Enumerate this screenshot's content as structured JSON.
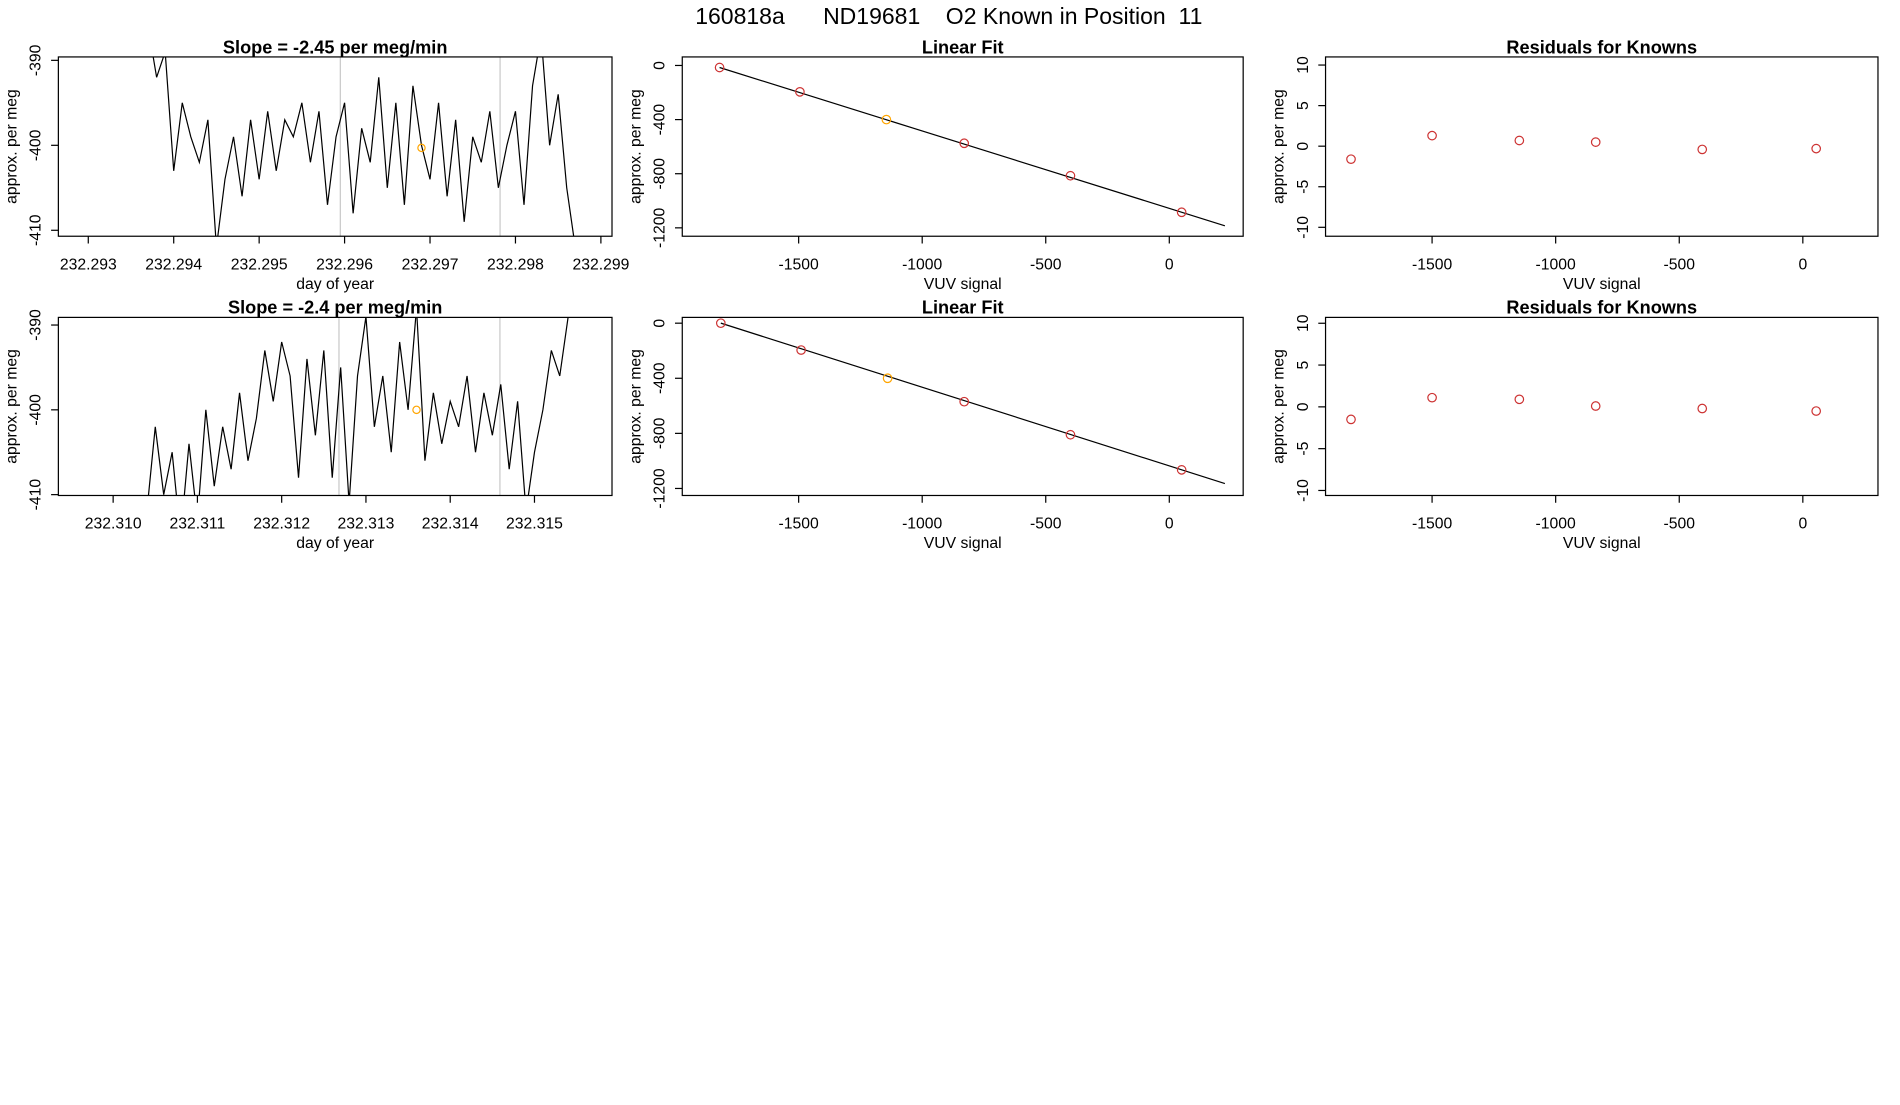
{
  "title": "160818a      ND19681    O2 Known in Position  11",
  "chart_data": [
    {
      "type": "line",
      "title": "Slope =  -2.45  per meg/min",
      "x_label": "day of year",
      "y_label": "approx. per meg",
      "x": [
        232.2937,
        232.2938,
        232.2939,
        232.294,
        232.2941,
        232.2942,
        232.2943,
        232.2944,
        232.2945,
        232.2946,
        232.2947,
        232.2948,
        232.2949,
        232.295,
        232.2951,
        232.2952,
        232.2953,
        232.2954,
        232.2955,
        232.2956,
        232.2957,
        232.2958,
        232.2959,
        232.296,
        232.2961,
        232.2962,
        232.2963,
        232.2964,
        232.2965,
        232.2966,
        232.2967,
        232.2968,
        232.2969,
        232.297,
        232.2971,
        232.2972,
        232.2973,
        232.2974,
        232.2975,
        232.2976,
        232.2977,
        232.2978,
        232.2979,
        232.298,
        232.2981,
        232.2982,
        232.2983,
        232.2984,
        232.2985,
        232.2986,
        232.2987
      ],
      "values": [
        -386,
        -392,
        -389,
        -403,
        -395,
        -399,
        -402,
        -397,
        -412,
        -404,
        -399,
        -406,
        -397,
        -404,
        -396,
        -403,
        -397,
        -399,
        -395,
        -402,
        -396,
        -407,
        -399,
        -395,
        -408,
        -398,
        -402,
        -392,
        -405,
        -395,
        -407,
        -393,
        -400,
        -404,
        -395,
        -406,
        -397,
        -409,
        -399,
        -402,
        -396,
        -405,
        -400,
        -396,
        -407,
        -393,
        -387,
        -400,
        -394,
        -405,
        -412
      ],
      "color": "#000000",
      "highlight": {
        "x": 232.2969,
        "y": -400.3,
        "color": "#ffa500"
      },
      "vlines": [
        232.29595,
        232.29782
      ],
      "vline_color": "#c8c8c8",
      "xlim": [
        232.29265,
        232.29913
      ],
      "ylim": [
        -410.7,
        -389.6
      ],
      "xticks": [
        232.293,
        232.294,
        232.295,
        232.296,
        232.297,
        232.298,
        232.299
      ],
      "yticks": [
        -390,
        -400,
        -410
      ]
    },
    {
      "type": "scatter",
      "title": "Linear Fit",
      "x_label": "VUV signal",
      "y_label": "approx. per meg",
      "x": [
        -1820,
        -1495,
        -1145,
        -830,
        -400,
        50
      ],
      "values": [
        -15,
        -195,
        -400,
        -575,
        -815,
        -1085
      ],
      "colors": [
        "#cd3333",
        "#cd3333",
        "#ffa500",
        "#cd3333",
        "#cd3333",
        "#cd3333"
      ],
      "fit": {
        "slope": -0.572,
        "intercept": -1056,
        "range": [
          -1820,
          225
        ],
        "color": "#000000"
      },
      "xlim": [
        -1971,
        299
      ],
      "ylim": [
        -1262,
        63
      ],
      "xticks": [
        -1500,
        -1000,
        -500,
        0
      ],
      "yticks": [
        0,
        -400,
        -800,
        -1200
      ]
    },
    {
      "type": "scatter",
      "title": "Residuals for Knowns",
      "x_label": "VUV signal",
      "y_label": "approx. per meg",
      "x": [
        -1828,
        -1500,
        -1147,
        -838,
        -407,
        54
      ],
      "values": [
        -1.6,
        1.3,
        0.7,
        0.5,
        -0.4,
        -0.3
      ],
      "colors": [
        "#cd3333",
        "#cd3333",
        "#cd3333",
        "#cd3333",
        "#cd3333",
        "#cd3333"
      ],
      "xlim": [
        -1931,
        304
      ],
      "ylim": [
        -11.1,
        11.0
      ],
      "xticks": [
        -1500,
        -1000,
        -500,
        0
      ],
      "yticks": [
        -10,
        -5,
        0,
        5,
        10
      ]
    },
    {
      "type": "line",
      "title": "Slope =  -2.4  per meg/min",
      "x_label": "day of year",
      "y_label": "approx. per meg",
      "x": [
        232.3104,
        232.3105,
        232.3106,
        232.3107,
        232.3108,
        232.3109,
        232.311,
        232.3111,
        232.3112,
        232.3113,
        232.3114,
        232.3115,
        232.3116,
        232.3117,
        232.3118,
        232.3119,
        232.312,
        232.3121,
        232.3122,
        232.3123,
        232.3124,
        232.3125,
        232.3126,
        232.3127,
        232.3128,
        232.3129,
        232.313,
        232.3131,
        232.3132,
        232.3133,
        232.3134,
        232.3135,
        232.3136,
        232.3137,
        232.3138,
        232.3139,
        232.314,
        232.3141,
        232.3142,
        232.3143,
        232.3144,
        232.3145,
        232.3146,
        232.3147,
        232.3148,
        232.3149,
        232.315,
        232.3151,
        232.3152,
        232.3153,
        232.3154
      ],
      "values": [
        -412,
        -402,
        -410,
        -405,
        -415,
        -404,
        -413,
        -400,
        -409,
        -402,
        -407,
        -398,
        -406,
        -401,
        -393,
        -399,
        -392,
        -396,
        -408,
        -394,
        -403,
        -393,
        -408,
        -395,
        -411,
        -396,
        -389,
        -402,
        -396,
        -405,
        -392,
        -400,
        -388,
        -406,
        -398,
        -404,
        -399,
        -402,
        -396,
        -405,
        -398,
        -403,
        -397,
        -407,
        -399,
        -412,
        -405,
        -400,
        -393,
        -396,
        -389
      ],
      "color": "#000000",
      "highlight": {
        "x": 232.3136,
        "y": -400,
        "color": "#ffa500"
      },
      "vlines": [
        232.31268,
        232.31459
      ],
      "vline_color": "#c8c8c8",
      "xlim": [
        232.30935,
        232.31592
      ],
      "ylim": [
        -410.1,
        -389.1
      ],
      "xticks": [
        {
          "value": 232.31,
          "label": "232.310"
        },
        232.311,
        232.312,
        232.313,
        232.314,
        232.315
      ],
      "yticks": [
        -390,
        -400,
        -410
      ]
    },
    {
      "type": "scatter",
      "title": "Linear Fit",
      "x_label": "VUV signal",
      "y_label": "approx. per meg",
      "x": [
        -1815,
        -1490,
        -1140,
        -830,
        -400,
        50
      ],
      "values": [
        0,
        -195,
        -400,
        -570,
        -810,
        -1065
      ],
      "colors": [
        "#cd3333",
        "#cd3333",
        "#ffa500",
        "#cd3333",
        "#cd3333",
        "#cd3333"
      ],
      "fit": {
        "slope": -0.571,
        "intercept": -1036,
        "range": [
          -1815,
          225
        ],
        "color": "#000000"
      },
      "xlim": [
        -1971,
        299
      ],
      "ylim": [
        -1251,
        42
      ],
      "xticks": [
        -1500,
        -1000,
        -500,
        0
      ],
      "yticks": [
        0,
        -400,
        -800,
        -1200
      ]
    },
    {
      "type": "scatter",
      "title": "Residuals for Knowns",
      "x_label": "VUV signal",
      "y_label": "approx. per meg",
      "x": [
        -1828,
        -1500,
        -1147,
        -838,
        -407,
        54
      ],
      "values": [
        -1.5,
        1.1,
        0.9,
        0.1,
        -0.2,
        -0.5
      ],
      "colors": [
        "#cd3333",
        "#cd3333",
        "#cd3333",
        "#cd3333",
        "#cd3333",
        "#cd3333"
      ],
      "xlim": [
        -1931,
        304
      ],
      "ylim": [
        -10.6,
        10.7
      ],
      "xticks": [
        -1500,
        -1000,
        -500,
        0
      ],
      "yticks": [
        -10,
        -5,
        0,
        5,
        10
      ]
    }
  ]
}
